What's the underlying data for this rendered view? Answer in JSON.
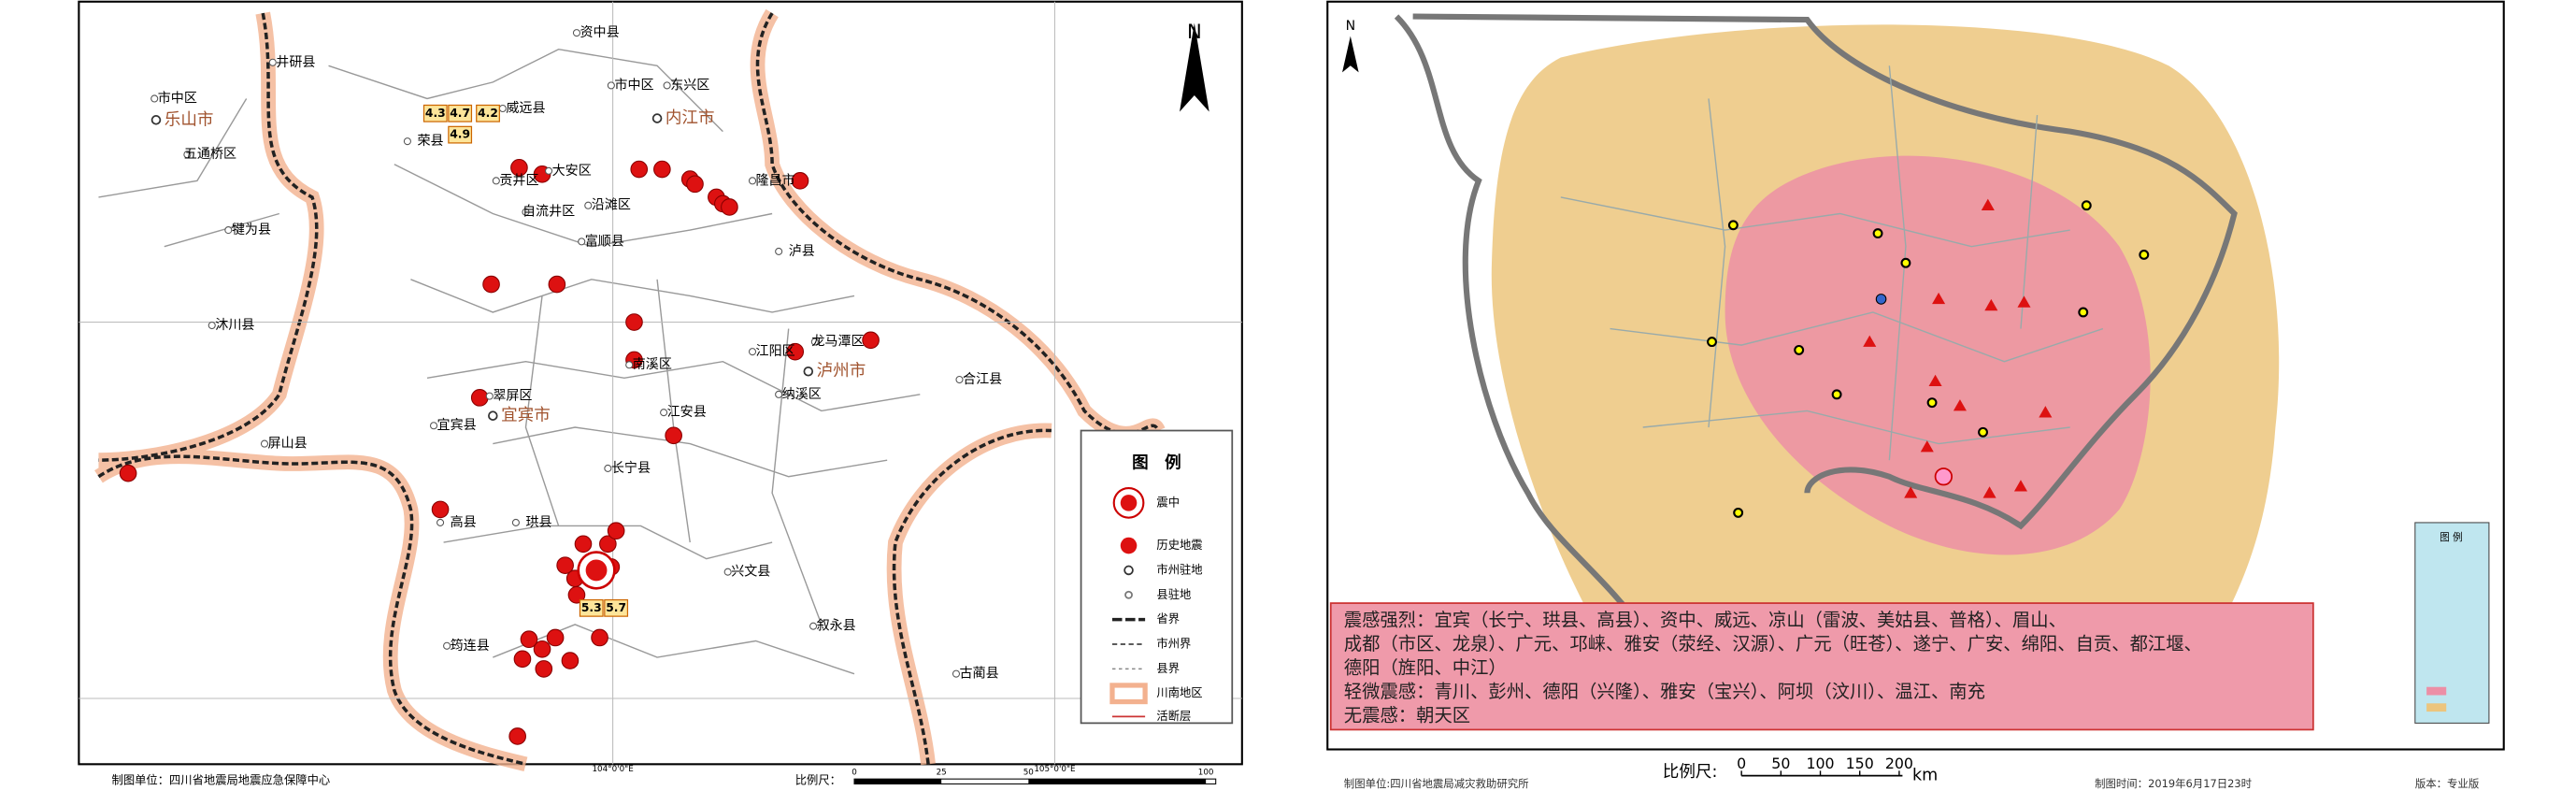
{
  "left_map": {
    "north": "N",
    "places": [
      "资中县",
      "井研县",
      "市中区",
      "东兴区",
      "市中区",
      "威远县",
      "荣县",
      "贡井区",
      "大安区",
      "自流井区",
      "沿滩区",
      "隆昌市",
      "五通桥区",
      "犍为县",
      "富顺县",
      "泸县",
      "沐川县",
      "龙马潭区",
      "江阳区",
      "纳溪区",
      "南溪区",
      "合江县",
      "翠屏区",
      "江安县",
      "宜宾县",
      "屏山县",
      "长宁县",
      "高县",
      "珙县",
      "兴文县",
      "筠连县",
      "叙永县",
      "古蔺县"
    ],
    "cities": [
      "乐山市",
      "内江市",
      "泸州市",
      "宜宾市"
    ],
    "magnitudes": [
      4.3,
      4.7,
      4.2,
      4.9,
      5.3,
      5.7
    ],
    "coords": [
      "104°0'0\"E",
      "105°0'0\"E"
    ],
    "legend": {
      "title": "图　例",
      "items": [
        "震中",
        "历史地震",
        "市州驻地",
        "县驻地",
        "省界",
        "市州界",
        "县界",
        "川南地区",
        "活断层"
      ]
    },
    "footer": {
      "unit": "制图单位：四川省地震局地震应急保障中心",
      "scale_label": "比例尺：",
      "scale_ticks": [
        0,
        25,
        50,
        100
      ]
    }
  },
  "right_map": {
    "north": "N",
    "legend": {
      "title": "图 例"
    },
    "intensity": [
      "震感强烈：宜宾（长宁、珙县、高县）、资中、威远、凉山（雷波、美姑县、普格）、眉山、",
      "成都（市区、龙泉）、广元、邛崃、雅安（荥经、汉源）、广元（旺苍）、遂宁、广安、绵阳、自贡、都江堰、",
      "德阳（旌阳、中江）",
      "轻微震感：青川、彭州、德阳（兴隆）、雅安（宝兴）、阿坝（汶川）、温江、南充",
      "无震感：朝天区"
    ],
    "footer": {
      "unit": "制图单位:四川省地震局减灾救助研究所",
      "scale_label": "比例尺:",
      "scale_ticks": [
        0,
        50,
        100,
        150,
        200
      ],
      "scale_unit": "km",
      "time": "制图时间：2019年6月17日23时",
      "version": "版本：专业版"
    }
  }
}
